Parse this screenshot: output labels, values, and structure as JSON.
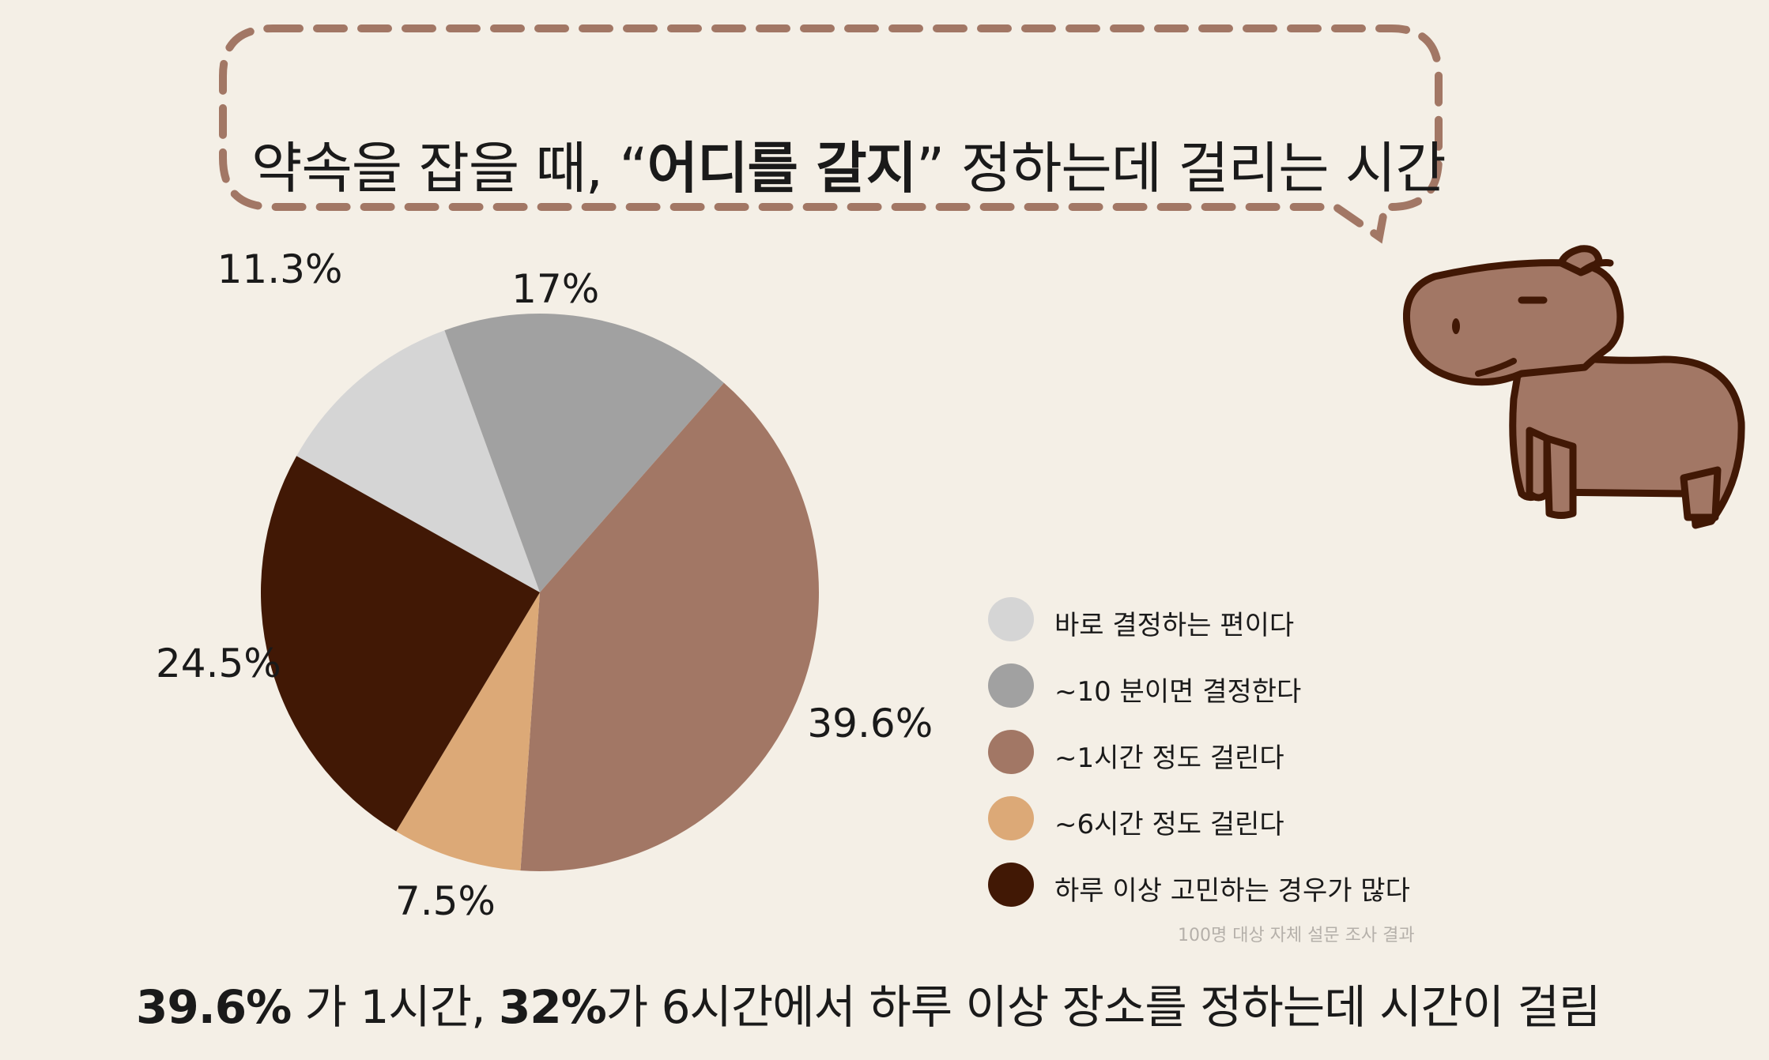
{
  "title": {
    "prefix": "약속을 잡을 때, “",
    "emphasis": "어디를 갈지",
    "suffix": "” 정하는데 걸리는 시간"
  },
  "chart_data": {
    "type": "pie",
    "unit": "%",
    "labels": [
      "바로 결정하는 편이다",
      "~10 분이면 결정한다",
      "~1시간 정도 걸린다",
      "~6시간 정도 걸린다",
      "하루 이상 고민하는 경우가 많다"
    ],
    "values": [
      11.3,
      17,
      39.6,
      7.5,
      24.5
    ],
    "value_labels": [
      "11.3%",
      "17%",
      "39.6%",
      "7.5%",
      "24.5%"
    ],
    "colors": [
      "#d5d5d5",
      "#a1a1a1",
      "#a27765",
      "#dca977",
      "#411805"
    ],
    "legend_position": "right"
  },
  "source": "100명 대상 자체 설문 조사 결과",
  "summary": {
    "bold1": "39.6%",
    "text1": " 가 1시간, ",
    "bold2": "32%",
    "text2": "가 6시간에서 하루 이상 장소를 정하는데 시간이 걸림"
  },
  "colors": {
    "background": "#f4efe6",
    "bubble_stroke": "#a27765",
    "capybara_fill": "#a27765",
    "capybara_outline": "#411805"
  }
}
